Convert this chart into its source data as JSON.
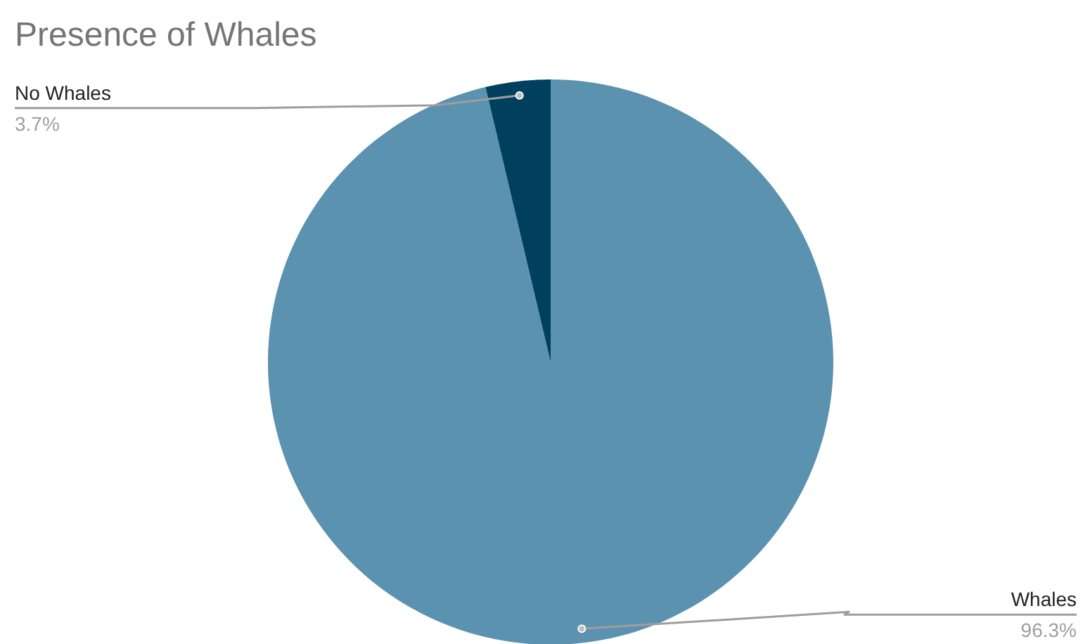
{
  "chart_data": {
    "type": "pie",
    "title": "Presence of Whales",
    "categories": [
      "Whales",
      "No Whales"
    ],
    "values": [
      96.3,
      3.7
    ],
    "value_labels": [
      "96.3%",
      "3.7%"
    ],
    "colors": [
      "#5b92b0",
      "#00405e"
    ]
  }
}
